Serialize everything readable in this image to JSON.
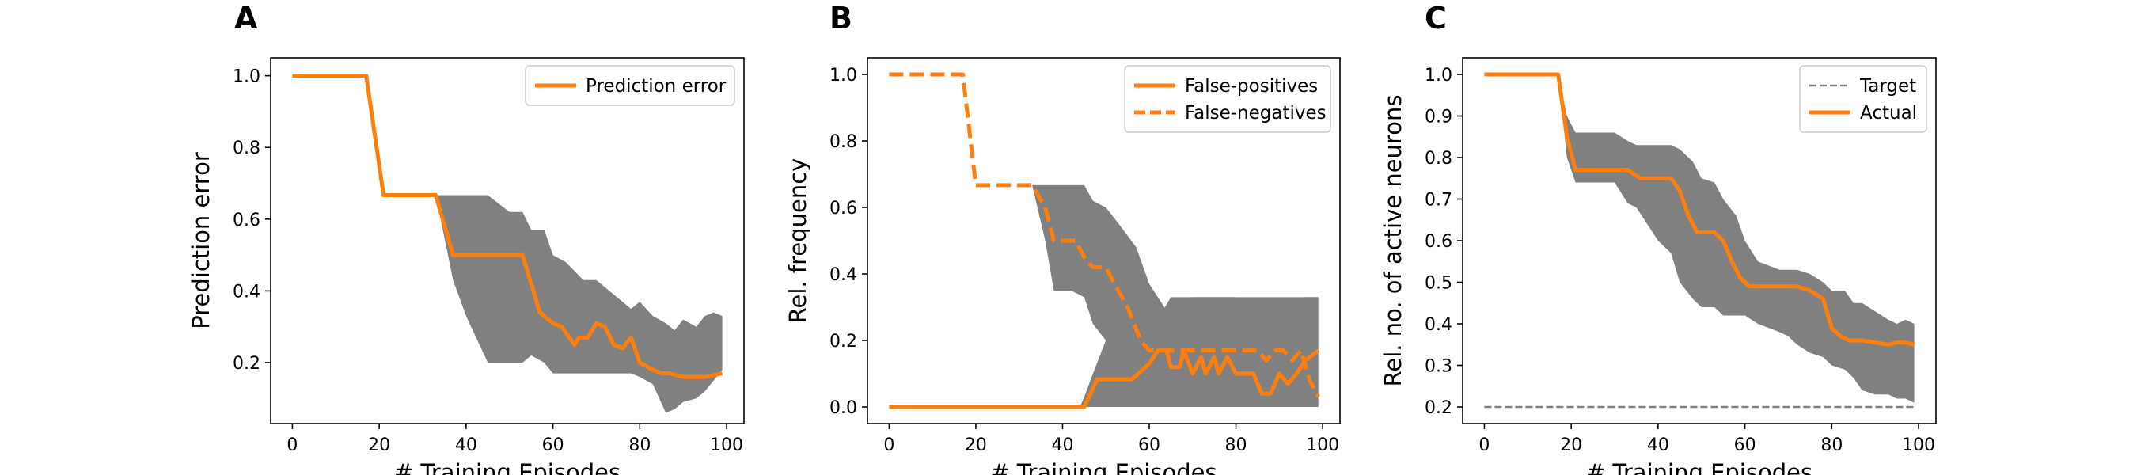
{
  "chart_data": [
    {
      "type": "line",
      "panel_label": "A",
      "xlabel": "# Training Episodes",
      "ylabel": "Prediction error",
      "xlim": [
        -5,
        104
      ],
      "ylim": [
        0.03,
        1.05
      ],
      "xticks": [
        0,
        20,
        40,
        60,
        80,
        100
      ],
      "xtick_labels": [
        "0",
        "20",
        "40",
        "60",
        80,
        "100"
      ],
      "yticks": [
        0.2,
        0.4,
        0.6,
        0.8,
        1.0
      ],
      "ytick_labels": [
        "0.2",
        "0.4",
        "0.6",
        "0.8",
        "1.0"
      ],
      "grid": false,
      "legend_position": "top-right",
      "colors": {
        "orange": "#ff7f0e",
        "band": "#808080",
        "target": "#808080"
      },
      "band": {
        "x": [
          0,
          17,
          21,
          33,
          35,
          37,
          40,
          45,
          50,
          53,
          55,
          58,
          60,
          63,
          67,
          70,
          75,
          78,
          80,
          83,
          86,
          88,
          90,
          93,
          95,
          97,
          99
        ],
        "upper": [
          1.0,
          1.0,
          0.667,
          0.667,
          0.667,
          0.667,
          0.667,
          0.667,
          0.62,
          0.62,
          0.57,
          0.57,
          0.5,
          0.48,
          0.43,
          0.43,
          0.38,
          0.35,
          0.37,
          0.33,
          0.31,
          0.29,
          0.32,
          0.3,
          0.33,
          0.34,
          0.33
        ],
        "lower": [
          1.0,
          1.0,
          0.667,
          0.667,
          0.55,
          0.43,
          0.33,
          0.2,
          0.2,
          0.2,
          0.22,
          0.2,
          0.17,
          0.17,
          0.17,
          0.17,
          0.17,
          0.17,
          0.16,
          0.14,
          0.06,
          0.07,
          0.09,
          0.1,
          0.12,
          0.15,
          0.18
        ]
      },
      "series": [
        {
          "name": "Prediction error",
          "style": "solid",
          "x": [
            0,
            17,
            21,
            33,
            37,
            53,
            57,
            60,
            62,
            65,
            66,
            68,
            70,
            72,
            74,
            76,
            78,
            80,
            83,
            85,
            87,
            90,
            93,
            95,
            97,
            99
          ],
          "y": [
            1.0,
            1.0,
            0.667,
            0.667,
            0.5,
            0.5,
            0.34,
            0.31,
            0.3,
            0.25,
            0.27,
            0.27,
            0.31,
            0.3,
            0.25,
            0.24,
            0.27,
            0.2,
            0.18,
            0.17,
            0.17,
            0.16,
            0.16,
            0.16,
            0.165,
            0.17
          ]
        }
      ]
    },
    {
      "type": "line",
      "panel_label": "B",
      "xlabel": "# Training Episodes",
      "ylabel": "Rel. frequency",
      "xlim": [
        -5,
        104
      ],
      "ylim": [
        -0.05,
        1.05
      ],
      "xticks": [
        0,
        20,
        40,
        60,
        80,
        100
      ],
      "xtick_labels": [
        "0",
        "20",
        "40",
        "60",
        "80",
        "100"
      ],
      "yticks": [
        0.0,
        0.2,
        0.4,
        0.6,
        0.8,
        1.0
      ],
      "ytick_labels": [
        "0.0",
        "0.2",
        "0.4",
        "0.6",
        "0.8",
        "1.0"
      ],
      "grid": false,
      "legend_position": "top-right",
      "band": {
        "x": [
          0,
          17,
          21,
          33,
          36,
          38,
          42,
          45,
          47,
          50,
          53,
          57,
          60,
          63,
          65,
          70,
          75,
          80,
          85,
          90,
          93,
          96,
          99
        ],
        "upper": [
          1.0,
          1.0,
          0.667,
          0.667,
          0.667,
          0.667,
          0.667,
          0.667,
          0.62,
          0.6,
          0.55,
          0.48,
          0.37,
          0.31,
          0.27,
          0.33,
          0.33,
          0.33,
          0.3,
          0.28,
          0.29,
          0.33,
          0.33
        ],
        "lower": [
          1.0,
          1.0,
          0.667,
          0.667,
          0.5,
          0.35,
          0.35,
          0.33,
          0.25,
          0.2,
          0.17,
          0.1,
          0.05,
          0.0,
          0.0,
          0.0,
          0.0,
          0.0,
          0.0,
          0.0,
          0.0,
          0.0,
          0.0
        ]
      },
      "band2": {
        "x": [
          0,
          44,
          45,
          47,
          50,
          53,
          57,
          60,
          65,
          70,
          75,
          80,
          85,
          90,
          95,
          99
        ],
        "upper": [
          0.0,
          0.0,
          0.03,
          0.1,
          0.2,
          0.22,
          0.22,
          0.22,
          0.33,
          0.33,
          0.33,
          0.33,
          0.33,
          0.33,
          0.33,
          0.33
        ],
        "lower": [
          0.0,
          0.0,
          0.0,
          0.0,
          0.0,
          0.0,
          0.0,
          0.0,
          0.0,
          0.0,
          0.0,
          0.0,
          0.0,
          0.0,
          0.0,
          0.0
        ]
      },
      "series": [
        {
          "name": "False-positives",
          "style": "solid",
          "x": [
            0,
            45,
            48,
            56,
            60,
            62,
            64,
            65,
            67,
            68,
            70,
            72,
            73,
            75,
            76,
            78,
            80,
            82,
            84,
            86,
            88,
            90,
            92,
            94,
            96,
            99
          ],
          "y": [
            0.0,
            0.0,
            0.083,
            0.083,
            0.13,
            0.17,
            0.17,
            0.12,
            0.12,
            0.17,
            0.1,
            0.15,
            0.1,
            0.15,
            0.1,
            0.15,
            0.1,
            0.1,
            0.1,
            0.04,
            0.04,
            0.1,
            0.07,
            0.1,
            0.14,
            0.17
          ]
        },
        {
          "name": "False-negatives",
          "style": "dashed",
          "x": [
            0,
            17,
            20,
            33,
            36,
            38,
            43,
            45,
            47,
            50,
            52,
            55,
            58,
            60,
            62,
            65,
            70,
            75,
            80,
            85,
            87,
            89,
            91,
            93,
            95,
            97,
            99
          ],
          "y": [
            1.0,
            1.0,
            0.667,
            0.667,
            0.6,
            0.5,
            0.5,
            0.45,
            0.42,
            0.42,
            0.37,
            0.3,
            0.2,
            0.17,
            0.17,
            0.17,
            0.17,
            0.17,
            0.17,
            0.17,
            0.14,
            0.17,
            0.17,
            0.14,
            0.17,
            0.08,
            0.03
          ]
        }
      ]
    },
    {
      "type": "line",
      "panel_label": "C",
      "xlabel": "# Training Episodes",
      "ylabel": "Rel. no. of active neurons",
      "xlim": [
        -5,
        104
      ],
      "ylim": [
        0.16,
        1.04
      ],
      "xticks": [
        0,
        20,
        40,
        60,
        80,
        100
      ],
      "xtick_labels": [
        "0",
        "20",
        "40",
        "60",
        "80",
        "100"
      ],
      "yticks": [
        0.2,
        0.3,
        0.4,
        0.5,
        0.6,
        0.7,
        0.8,
        0.9,
        1.0
      ],
      "ytick_labels": [
        "0.2",
        "0.3",
        "0.4",
        "0.5",
        "0.6",
        "0.7",
        "0.8",
        "0.9",
        "1.0"
      ],
      "grid": false,
      "legend_position": "top-right",
      "band": {
        "x": [
          0,
          17,
          19,
          21,
          27,
          30,
          33,
          35,
          40,
          43,
          45,
          48,
          50,
          53,
          55,
          58,
          60,
          63,
          68,
          70,
          72,
          75,
          78,
          80,
          83,
          85,
          87,
          90,
          93,
          95,
          97,
          99
        ],
        "upper": [
          1.0,
          1.0,
          0.9,
          0.86,
          0.86,
          0.86,
          0.84,
          0.83,
          0.83,
          0.83,
          0.82,
          0.79,
          0.75,
          0.74,
          0.7,
          0.66,
          0.6,
          0.55,
          0.53,
          0.53,
          0.53,
          0.52,
          0.5,
          0.48,
          0.48,
          0.45,
          0.45,
          0.43,
          0.41,
          0.4,
          0.41,
          0.4
        ],
        "lower": [
          1.0,
          1.0,
          0.8,
          0.74,
          0.74,
          0.74,
          0.69,
          0.68,
          0.6,
          0.57,
          0.5,
          0.46,
          0.44,
          0.44,
          0.42,
          0.42,
          0.42,
          0.4,
          0.38,
          0.37,
          0.35,
          0.33,
          0.32,
          0.3,
          0.29,
          0.27,
          0.24,
          0.23,
          0.23,
          0.22,
          0.22,
          0.21
        ]
      },
      "series": [
        {
          "name": "Target",
          "style": "dashed-thin",
          "x": [
            0,
            99
          ],
          "y": [
            0.2,
            0.2
          ]
        },
        {
          "name": "Actual",
          "style": "solid",
          "x": [
            0,
            17,
            19,
            21,
            27,
            30,
            33,
            36,
            40,
            43,
            45,
            47,
            49,
            53,
            55,
            57,
            59,
            61,
            63,
            68,
            70,
            72,
            75,
            78,
            80,
            82,
            84,
            87,
            90,
            93,
            95,
            97,
            99
          ],
          "y": [
            1.0,
            1.0,
            0.85,
            0.77,
            0.77,
            0.77,
            0.77,
            0.75,
            0.75,
            0.75,
            0.72,
            0.66,
            0.62,
            0.62,
            0.6,
            0.55,
            0.51,
            0.49,
            0.49,
            0.49,
            0.49,
            0.49,
            0.48,
            0.46,
            0.39,
            0.37,
            0.36,
            0.36,
            0.355,
            0.35,
            0.355,
            0.355,
            0.35
          ]
        }
      ]
    }
  ]
}
